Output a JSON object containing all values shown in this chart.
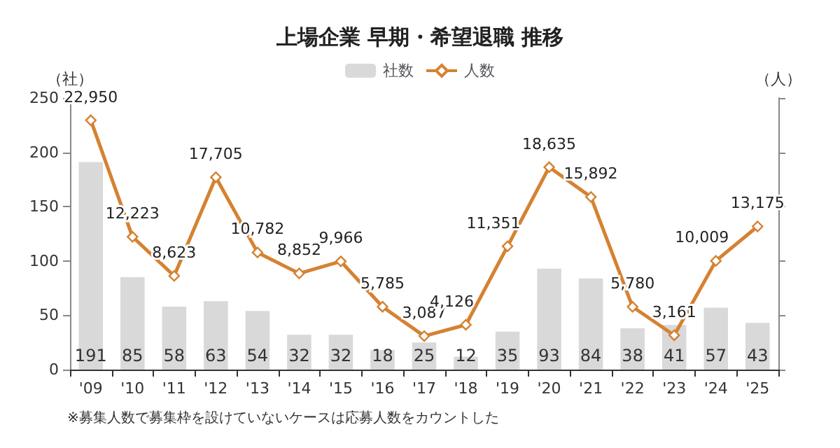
{
  "chart_data": {
    "type": "bar",
    "title": "上場企業 早期・希望退職 推移",
    "ylabel": "（社）",
    "y2label": "（人）",
    "categories": [
      "'09",
      "'10",
      "'11",
      "'12",
      "'13",
      "'14",
      "'15",
      "'16",
      "'17",
      "'18",
      "'19",
      "'20",
      "'21",
      "'22",
      "'23",
      "'24",
      "'25"
    ],
    "series": [
      {
        "name": "社数",
        "color": "#d9d9d9",
        "values": [
          191,
          85,
          58,
          63,
          54,
          32,
          32,
          18,
          25,
          12,
          35,
          93,
          84,
          38,
          41,
          57,
          43
        ]
      },
      {
        "name": "人数",
        "type": "line",
        "axis": "y2",
        "color": "#d58232",
        "marker": "diamond",
        "values": [
          22950,
          12223,
          8623,
          17705,
          10782,
          8852,
          9966,
          5785,
          3087,
          4126,
          11351,
          18635,
          15892,
          5780,
          3161,
          10009,
          13175
        ],
        "value_labels": [
          "22,950",
          "12,223",
          "8,623",
          "17,705",
          "10,782",
          "8,852",
          "9,966",
          "5,785",
          "3,087",
          "4,126",
          "11,351",
          "18,635",
          "15,892",
          "5,780",
          "3,161",
          "10,009",
          "13,175"
        ]
      }
    ],
    "ylim": [
      0,
      250
    ],
    "yticks": [
      0,
      50,
      100,
      150,
      200,
      250
    ],
    "data_labels": true,
    "legend": "top",
    "grid": false,
    "annotations": [
      "※募集人数で募集枠を設けていないケースは応募人数をカウントした"
    ]
  }
}
